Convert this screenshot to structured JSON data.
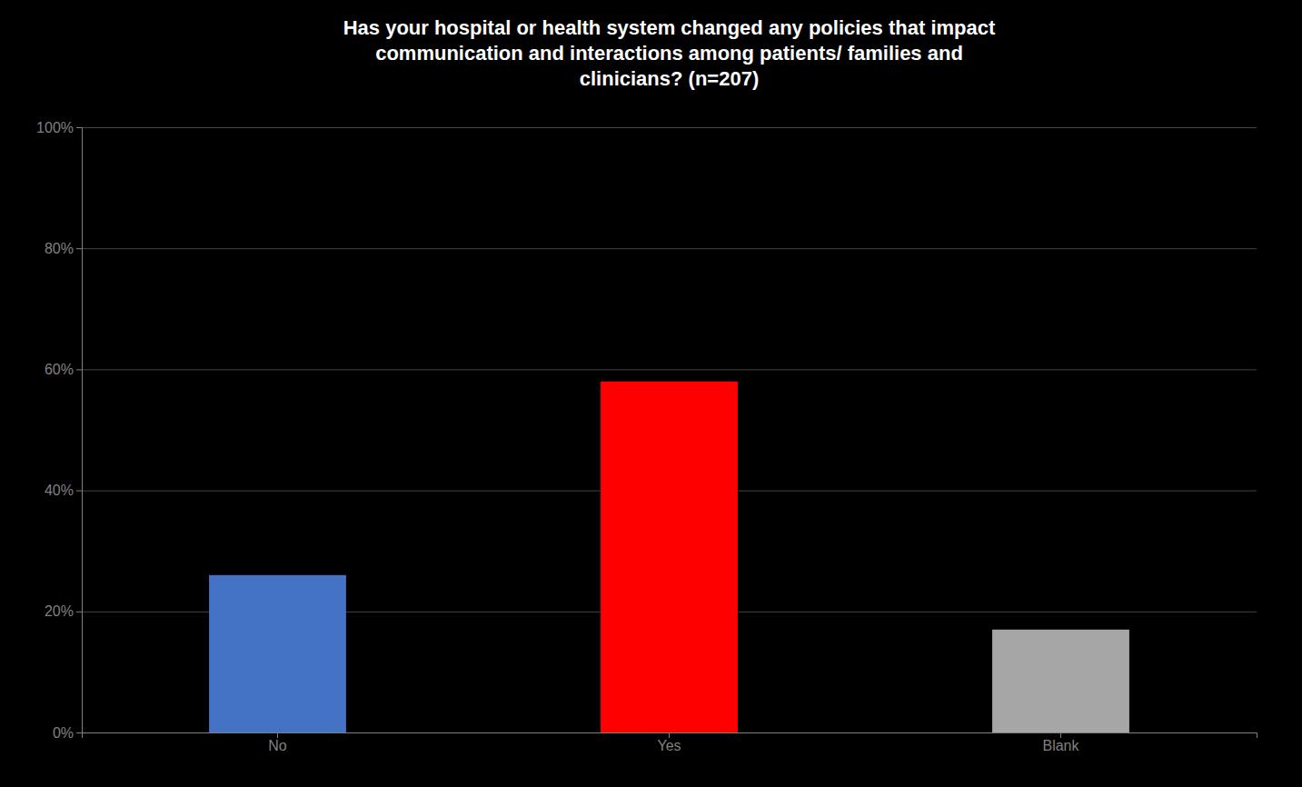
{
  "chart_data": {
    "type": "bar",
    "title": "Has your hospital or health system changed any policies that impact\ncommunication and interactions among patients/ families and\nclinicians? (n=207)",
    "categories": [
      "No",
      "Yes",
      "Blank"
    ],
    "values": [
      0.26,
      0.58,
      0.17
    ],
    "colors": [
      "#4472C4",
      "#FF0000",
      "#A6A6A6"
    ],
    "ylim": [
      0,
      1.0
    ],
    "yticks": [
      {
        "value": 0,
        "label": "0%"
      },
      {
        "value": 0.2,
        "label": "20%"
      },
      {
        "value": 0.4,
        "label": "40%"
      },
      {
        "value": 0.6,
        "label": "60%"
      },
      {
        "value": 0.8,
        "label": "80%"
      },
      {
        "value": 1.0,
        "label": "100%"
      }
    ],
    "grid": true
  }
}
